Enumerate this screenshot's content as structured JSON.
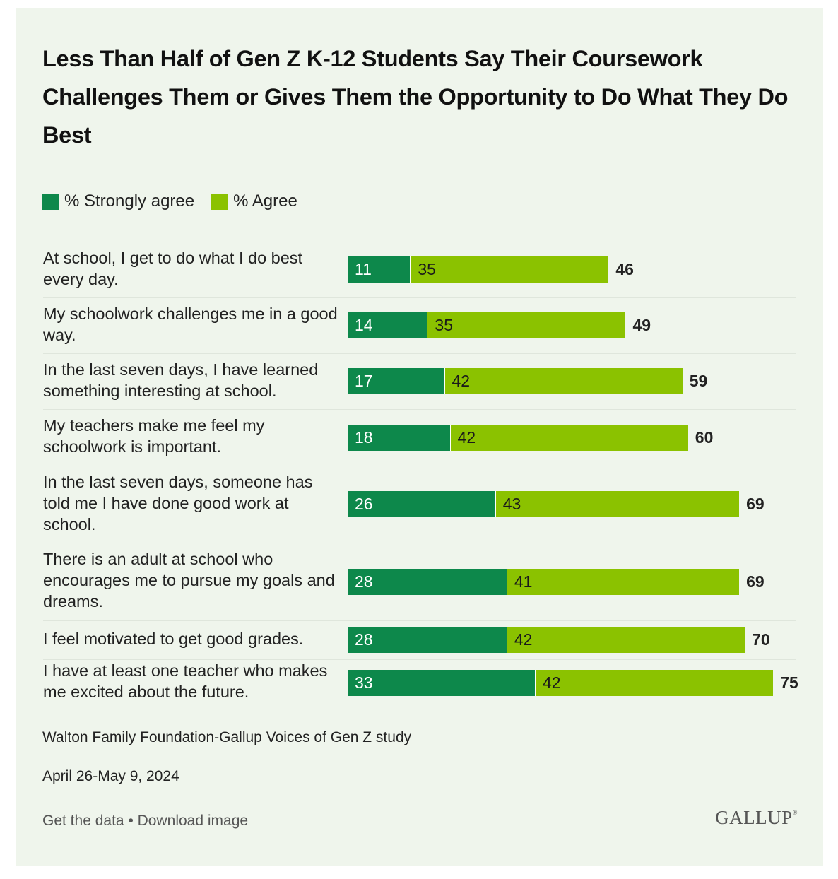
{
  "title": "Less Than Half of Gen Z K-12 Students Say Their Coursework Challenges Them or Gives Them the Opportunity to Do What They Do Best",
  "legend": [
    {
      "label": "% Strongly agree",
      "color": "#0d884b"
    },
    {
      "label": "% Agree",
      "color": "#8bc200"
    }
  ],
  "chart_data": {
    "type": "bar",
    "orientation": "horizontal",
    "stacked": true,
    "title": "Less Than Half of Gen Z K-12 Students Say Their Coursework Challenges Them or Gives Them the Opportunity to Do What They Do Best",
    "categories": [
      "At school, I get to do what I do best every day.",
      "My schoolwork challenges me in a good way.",
      "In the last seven days, I have learned something interesting at school.",
      "My teachers make me feel my schoolwork is important.",
      "In the last seven days, someone has told me I have done good work at school.",
      "There is an adult at school who encourages me to pursue my goals and dreams.",
      "I feel motivated to get good grades.",
      "I have at least one teacher who makes me excited about the future."
    ],
    "series": [
      {
        "name": "% Strongly agree",
        "values": [
          11,
          14,
          17,
          18,
          26,
          28,
          28,
          33
        ]
      },
      {
        "name": "% Agree",
        "values": [
          35,
          35,
          42,
          42,
          43,
          41,
          42,
          42
        ]
      }
    ],
    "totals": [
      46,
      49,
      59,
      60,
      69,
      69,
      70,
      75
    ],
    "xlim": [
      0,
      75
    ],
    "legend_position": "top-left"
  },
  "source": "Walton Family Foundation-Gallup Voices of Gen Z study",
  "date": "April 26-May 9, 2024",
  "footer": {
    "get_data": "Get the data",
    "separator": "•",
    "download": "Download image"
  },
  "logo": "GALLUP"
}
